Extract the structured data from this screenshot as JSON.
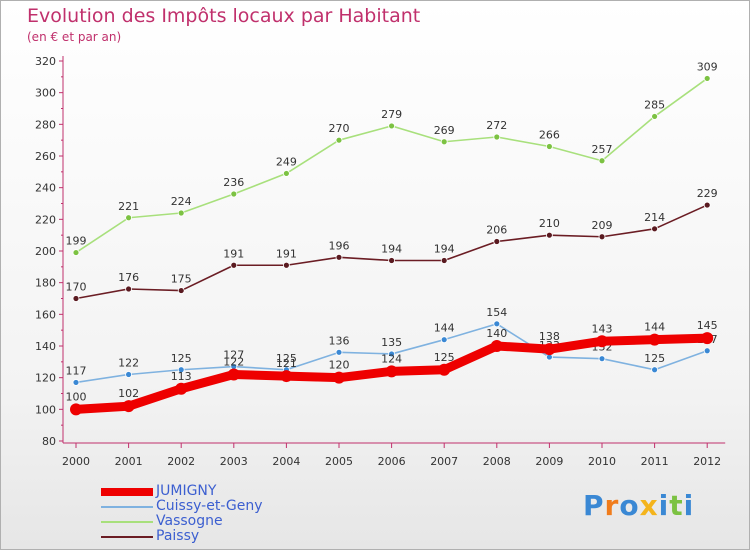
{
  "chart_data": {
    "type": "line",
    "title": "Evolution des Impôts locaux par Habitant",
    "subtitle": "(en € et par an)",
    "xlabel": "",
    "ylabel": "",
    "ylim": [
      80,
      320
    ],
    "yticks": [
      80,
      100,
      120,
      140,
      160,
      180,
      200,
      220,
      240,
      260,
      280,
      300,
      320
    ],
    "categories": [
      "2000",
      "2001",
      "2002",
      "2003",
      "2004",
      "2005",
      "2006",
      "2007",
      "2008",
      "2009",
      "2010",
      "2011",
      "2012"
    ],
    "series": [
      {
        "name": "Paissy",
        "color": "#6b1d24",
        "marker_color": "#5a1a20",
        "style": "thin",
        "values": [
          170,
          176,
          175,
          191,
          191,
          196,
          194,
          194,
          206,
          210,
          209,
          214,
          229
        ]
      },
      {
        "name": "Vassogne",
        "color": "#a8e07c",
        "marker_color": "#7cc242",
        "style": "thin",
        "values": [
          199,
          221,
          224,
          236,
          249,
          270,
          279,
          269,
          272,
          266,
          257,
          285,
          309
        ]
      },
      {
        "name": "Cuissy-et-Geny",
        "color": "#7fb2e0",
        "marker_color": "#3a88d4",
        "style": "thin",
        "values": [
          117,
          122,
          125,
          127,
          125,
          136,
          135,
          144,
          154,
          133,
          132,
          125,
          137
        ]
      },
      {
        "name": "JUMIGNY",
        "color": "#ee0000",
        "marker_color": "#ee0000",
        "style": "thick",
        "values": [
          100,
          102,
          113,
          122,
          121,
          120,
          124,
          125,
          140,
          138,
          143,
          144,
          145
        ]
      }
    ],
    "legend_order": [
      "JUMIGNY",
      "Cuissy-et-Geny",
      "Vassogne",
      "Paissy"
    ],
    "legend_position": "bottom-left",
    "grid": false
  },
  "branding": {
    "logo_text": "Proxiti",
    "logo_colors": [
      "#3a88d4",
      "#f07c1c",
      "#3a88d4",
      "#f4b41c",
      "#3a88d4",
      "#7cc242",
      "#3a88d4"
    ]
  }
}
